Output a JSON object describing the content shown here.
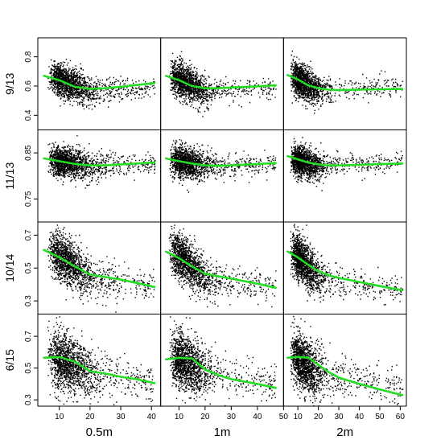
{
  "chart_data": {
    "type": "scatter",
    "layout": {
      "rows": 4,
      "cols": 3
    },
    "colors": {
      "points": "#000000",
      "smooth": "#22dd22",
      "frame": "#000000"
    },
    "rows": [
      {
        "label": "9/13",
        "ylim": [
          0.3,
          0.93
        ],
        "yticks": [
          0.4,
          0.6,
          0.8
        ],
        "yticklabels": [
          "0.4",
          "0.6",
          "0.8"
        ],
        "cloud": {
          "y0": 0.66,
          "drop": 0.09,
          "sd": 0.055,
          "tail": 0.6,
          "slope": 0.0008
        }
      },
      {
        "label": "11/13",
        "ylim": [
          0.7,
          0.9
        ],
        "yticks": [
          0.75,
          0.85
        ],
        "yticklabels": [
          "0.75",
          "0.85"
        ],
        "cloud": {
          "y0": 0.835,
          "drop": 0.012,
          "sd": 0.016,
          "tail": 0.822,
          "slope": 0.0002
        }
      },
      {
        "label": "10/14",
        "ylim": [
          0.22,
          0.78
        ],
        "yticks": [
          0.3,
          0.5,
          0.7
        ],
        "yticklabels": [
          "0.3",
          "0.5",
          "0.7"
        ],
        "cloud": {
          "y0": 0.6,
          "drop": 0.16,
          "sd": 0.065,
          "tail": 0.44,
          "slope": -0.002
        }
      },
      {
        "label": "6/15",
        "ylim": [
          0.26,
          0.84
        ],
        "yticks": [
          0.3,
          0.5,
          0.7
        ],
        "yticklabels": [
          "0.3",
          "0.5",
          "0.7"
        ],
        "cloud": {
          "y0": 0.57,
          "drop": 0.1,
          "sd": 0.085,
          "tail": 0.47,
          "slope": -0.0025
        }
      }
    ],
    "cols": [
      {
        "label": "0.5m",
        "xlim": [
          3,
          43
        ],
        "xticks": [
          10,
          20,
          30,
          40
        ],
        "xticklabels": [
          "10",
          "20",
          "30",
          "40"
        ],
        "xmax_data": 41
      },
      {
        "label": "1m",
        "xlim": [
          3,
          50
        ],
        "xticks": [
          10,
          20,
          30,
          40,
          50
        ],
        "xticklabels": [
          "10",
          "20",
          "30",
          "40",
          "50"
        ],
        "xmax_data": 47
      },
      {
        "label": "2m",
        "xlim": [
          3,
          63
        ],
        "xticks": [
          10,
          20,
          30,
          40,
          50,
          60
        ],
        "xticklabels": [
          "10",
          "20",
          "30",
          "40",
          "50",
          "60"
        ],
        "xmax_data": 61
      }
    ],
    "smooth_lines": [
      [
        [
          [
            5,
            0.67
          ],
          [
            10,
            0.64
          ],
          [
            15,
            0.595
          ],
          [
            20,
            0.58
          ],
          [
            25,
            0.585
          ],
          [
            30,
            0.595
          ],
          [
            35,
            0.607
          ],
          [
            41,
            0.62
          ]
        ],
        [
          [
            5,
            0.67
          ],
          [
            10,
            0.64
          ],
          [
            15,
            0.6
          ],
          [
            20,
            0.585
          ],
          [
            25,
            0.585
          ],
          [
            30,
            0.59
          ],
          [
            40,
            0.598
          ],
          [
            47,
            0.605
          ]
        ],
        [
          [
            5,
            0.675
          ],
          [
            10,
            0.645
          ],
          [
            15,
            0.605
          ],
          [
            20,
            0.585
          ],
          [
            25,
            0.575
          ],
          [
            30,
            0.572
          ],
          [
            40,
            0.575
          ],
          [
            50,
            0.578
          ],
          [
            61,
            0.58
          ]
        ]
      ],
      [
        [
          [
            5,
            0.838
          ],
          [
            10,
            0.832
          ],
          [
            15,
            0.826
          ],
          [
            20,
            0.823
          ],
          [
            25,
            0.823
          ],
          [
            30,
            0.825
          ],
          [
            35,
            0.827
          ],
          [
            41,
            0.829
          ]
        ],
        [
          [
            5,
            0.838
          ],
          [
            10,
            0.832
          ],
          [
            15,
            0.827
          ],
          [
            20,
            0.823
          ],
          [
            25,
            0.822
          ],
          [
            30,
            0.823
          ],
          [
            40,
            0.826
          ],
          [
            47,
            0.828
          ]
        ],
        [
          [
            5,
            0.843
          ],
          [
            10,
            0.836
          ],
          [
            15,
            0.829
          ],
          [
            20,
            0.825
          ],
          [
            25,
            0.823
          ],
          [
            30,
            0.823
          ],
          [
            40,
            0.824
          ],
          [
            50,
            0.826
          ],
          [
            61,
            0.827
          ]
        ]
      ],
      [
        [
          [
            5,
            0.61
          ],
          [
            10,
            0.565
          ],
          [
            15,
            0.51
          ],
          [
            20,
            0.46
          ],
          [
            25,
            0.445
          ],
          [
            30,
            0.43
          ],
          [
            35,
            0.41
          ],
          [
            41,
            0.385
          ]
        ],
        [
          [
            5,
            0.6
          ],
          [
            10,
            0.56
          ],
          [
            15,
            0.51
          ],
          [
            20,
            0.465
          ],
          [
            25,
            0.45
          ],
          [
            30,
            0.435
          ],
          [
            40,
            0.405
          ],
          [
            47,
            0.38
          ]
        ],
        [
          [
            5,
            0.6
          ],
          [
            10,
            0.565
          ],
          [
            15,
            0.52
          ],
          [
            20,
            0.48
          ],
          [
            25,
            0.455
          ],
          [
            30,
            0.44
          ],
          [
            40,
            0.415
          ],
          [
            50,
            0.39
          ],
          [
            61,
            0.365
          ]
        ]
      ],
      [
        [
          [
            5,
            0.565
          ],
          [
            10,
            0.57
          ],
          [
            15,
            0.54
          ],
          [
            20,
            0.48
          ],
          [
            25,
            0.465
          ],
          [
            30,
            0.445
          ],
          [
            35,
            0.43
          ],
          [
            41,
            0.405
          ]
        ],
        [
          [
            5,
            0.555
          ],
          [
            10,
            0.565
          ],
          [
            15,
            0.56
          ],
          [
            20,
            0.49
          ],
          [
            25,
            0.455
          ],
          [
            30,
            0.43
          ],
          [
            40,
            0.4
          ],
          [
            47,
            0.375
          ]
        ],
        [
          [
            5,
            0.565
          ],
          [
            10,
            0.57
          ],
          [
            15,
            0.565
          ],
          [
            20,
            0.52
          ],
          [
            25,
            0.475
          ],
          [
            30,
            0.44
          ],
          [
            40,
            0.4
          ],
          [
            50,
            0.365
          ],
          [
            61,
            0.33
          ]
        ]
      ]
    ]
  }
}
